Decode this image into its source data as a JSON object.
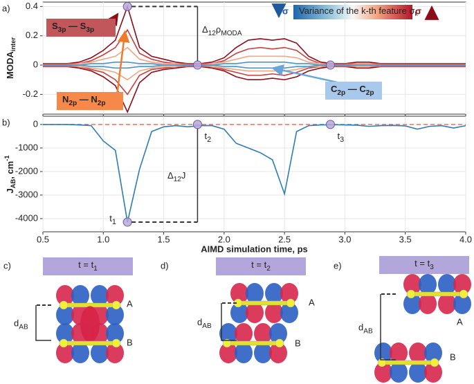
{
  "chart_data": [
    {
      "type": "line",
      "panel": "a)",
      "ylabel": [
        {
          "t": "MODA"
        },
        {
          "t": "inter",
          "sub": true
        }
      ],
      "x": [
        0.5,
        0.6,
        0.7,
        0.8,
        0.9,
        1.0,
        1.1,
        1.2,
        1.3,
        1.4,
        1.5,
        1.6,
        1.7,
        1.8,
        1.9,
        2.0,
        2.1,
        2.2,
        2.3,
        2.4,
        2.5,
        2.6,
        2.7,
        2.8,
        2.9,
        3.0,
        3.1,
        3.2,
        3.3,
        3.4,
        3.5,
        3.6,
        3.7,
        3.8,
        3.9,
        4.0
      ],
      "series": [
        {
          "color": "#8b0d1a",
          "values": [
            0.01,
            0.01,
            0.01,
            0.02,
            0.05,
            0.1,
            0.17,
            0.4,
            0.12,
            0.06,
            0.04,
            0.02,
            0.01,
            0.01,
            0.02,
            0.05,
            0.12,
            0.17,
            0.18,
            0.17,
            0.18,
            0.15,
            0.06,
            0.02,
            0.01,
            0.01,
            0.02,
            0.02,
            0.01,
            0.01,
            0.01,
            0.01,
            0.01,
            0.01,
            0.01,
            0.01
          ]
        },
        {
          "color": "#8b0d1a",
          "values": [
            -0.01,
            -0.01,
            -0.01,
            -0.02,
            -0.04,
            -0.08,
            -0.14,
            -0.32,
            -0.12,
            -0.05,
            -0.03,
            -0.02,
            -0.01,
            -0.01,
            -0.02,
            -0.04,
            -0.08,
            -0.1,
            -0.1,
            -0.09,
            -0.1,
            -0.08,
            -0.04,
            -0.02,
            -0.01,
            -0.01,
            -0.02,
            -0.02,
            -0.01,
            -0.01,
            -0.01,
            -0.01,
            -0.01,
            -0.01,
            -0.01,
            -0.01
          ]
        },
        {
          "color": "#c6403c",
          "values": [
            0.01,
            0.01,
            0.01,
            0.01,
            0.03,
            0.07,
            0.12,
            0.24,
            0.08,
            0.04,
            0.02,
            0.01,
            0.01,
            0.01,
            0.01,
            0.03,
            0.08,
            0.11,
            0.12,
            0.11,
            0.12,
            0.1,
            0.04,
            0.01,
            0.01,
            0.01,
            0.01,
            0.01,
            0.01,
            0.01,
            0.01,
            0.01,
            0.01,
            0.01,
            0.01,
            0.01
          ]
        },
        {
          "color": "#c6403c",
          "values": [
            -0.01,
            -0.01,
            -0.01,
            -0.01,
            -0.03,
            -0.05,
            -0.1,
            -0.2,
            -0.07,
            -0.03,
            -0.02,
            -0.01,
            -0.01,
            -0.01,
            -0.01,
            -0.03,
            -0.05,
            -0.07,
            -0.07,
            -0.06,
            -0.07,
            -0.05,
            -0.02,
            -0.01,
            -0.01,
            -0.01,
            -0.01,
            -0.01,
            -0.01,
            -0.01,
            -0.01,
            -0.01,
            -0.01,
            -0.01,
            -0.01,
            -0.01
          ]
        },
        {
          "color": "#f4a582",
          "values": [
            0,
            0,
            0,
            0.01,
            0.02,
            0.04,
            0.06,
            0.12,
            0.04,
            0.02,
            0.01,
            0.01,
            0,
            0,
            0.01,
            0.02,
            0.04,
            0.06,
            0.06,
            0.06,
            0.06,
            0.05,
            0.02,
            0.01,
            0,
            0,
            0.01,
            0.01,
            0,
            0,
            0,
            0,
            0,
            0,
            0,
            0
          ]
        },
        {
          "color": "#f4a582",
          "values": [
            0,
            0,
            0,
            -0.01,
            -0.02,
            -0.03,
            -0.05,
            -0.1,
            -0.04,
            -0.02,
            -0.01,
            -0.01,
            0,
            0,
            -0.01,
            -0.02,
            -0.03,
            -0.04,
            -0.04,
            -0.04,
            -0.04,
            -0.03,
            -0.01,
            -0.01,
            0,
            0,
            -0.01,
            -0.01,
            0,
            0,
            0,
            0,
            0,
            0,
            0,
            0
          ]
        },
        {
          "color": "#4a93c9",
          "values": [
            0,
            0,
            0,
            0,
            0.01,
            0.01,
            0.02,
            0.02,
            0.01,
            0.01,
            0,
            0,
            0,
            0,
            0,
            0.01,
            0.01,
            0.02,
            0.02,
            0.02,
            0.02,
            0.01,
            0.01,
            0,
            0,
            0,
            0,
            0,
            0,
            0,
            0,
            0,
            0,
            0,
            0,
            0
          ]
        },
        {
          "color": "#4a93c9",
          "values": [
            0,
            0,
            0,
            0,
            -0.01,
            -0.01,
            -0.02,
            -0.02,
            -0.01,
            -0.01,
            0,
            0,
            0,
            0,
            0,
            -0.01,
            -0.01,
            -0.02,
            -0.02,
            -0.02,
            -0.02,
            -0.01,
            -0.01,
            0,
            0,
            0,
            0,
            0,
            0,
            0,
            0,
            0,
            0,
            0,
            0,
            0
          ]
        }
      ],
      "xlim": [
        0.5,
        4.0
      ],
      "ylim": [
        -0.335,
        0.43
      ],
      "yticks": [
        -0.2,
        0,
        0.2,
        0.4
      ],
      "markers": [
        {
          "x": 1.2,
          "y": 0.4
        },
        {
          "x": 1.78,
          "y": 0
        },
        {
          "x": 2.88,
          "y": 0
        }
      ],
      "delta_label": [
        {
          "t": "Δ"
        },
        {
          "t": "12",
          "sub": true
        },
        {
          "t": "ρ"
        },
        {
          "t": "MODA",
          "sub": true
        }
      ],
      "colorbar_label": [
        {
          "t": "Variance of the k-th feature σ"
        },
        {
          "t": "k",
          "sub": true
        }
      ],
      "sigma_low": "σ",
      "sigma_high": "σ",
      "pair_labels": [
        [
          {
            "t": "S"
          },
          {
            "t": "3p",
            "sub": true
          },
          {
            "t": " — S"
          },
          {
            "t": "3p",
            "sub": true
          }
        ],
        [
          {
            "t": "N"
          },
          {
            "t": "2p",
            "sub": true
          },
          {
            "t": " — N"
          },
          {
            "t": "2p",
            "sub": true
          }
        ],
        [
          {
            "t": "C"
          },
          {
            "t": "2p",
            "sub": true
          },
          {
            "t": " — C"
          },
          {
            "t": "2p",
            "sub": true
          }
        ]
      ]
    },
    {
      "type": "line",
      "panel": "b)",
      "ylabel": [
        {
          "t": "J"
        },
        {
          "t": "AB",
          "sub": true
        },
        {
          "t": ", cm"
        },
        {
          "t": "-1",
          "sup": true
        }
      ],
      "xlabel": "AIMD simulation time, ps",
      "x": [
        0.5,
        0.6,
        0.7,
        0.8,
        0.9,
        1.0,
        1.1,
        1.2,
        1.3,
        1.4,
        1.5,
        1.6,
        1.7,
        1.8,
        1.9,
        2.0,
        2.1,
        2.2,
        2.3,
        2.4,
        2.5,
        2.6,
        2.7,
        2.8,
        2.9,
        3.0,
        3.1,
        3.2,
        3.3,
        3.4,
        3.5,
        3.6,
        3.7,
        3.8,
        3.9,
        4.0
      ],
      "series": [
        {
          "color": "#2c7bb6",
          "values": [
            0,
            0,
            0,
            -20,
            -50,
            -700,
            -1100,
            -4150,
            -1900,
            -300,
            -100,
            -50,
            -100,
            -50,
            -50,
            -200,
            -800,
            -1000,
            -1200,
            -1500,
            -2950,
            -300,
            -50,
            -20,
            -10,
            -20,
            -30,
            -80,
            -50,
            -40,
            -60,
            -200,
            -80,
            -50,
            -150,
            -50
          ]
        }
      ],
      "reference_line": {
        "value": 0,
        "color": "#e8715c"
      },
      "xlim": [
        0.5,
        4.0
      ],
      "xticks": [
        0.5,
        {
          "value": 1,
          "label": "1.0"
        },
        1.5,
        {
          "value": 2,
          "label": "2.0"
        },
        2.5,
        {
          "value": 3,
          "label": "3.0"
        },
        3.5,
        {
          "value": 4,
          "label": "4.0"
        }
      ],
      "ylim": [
        -4560,
        350
      ],
      "yticks": [
        -4000,
        -3000,
        -2000,
        -1000,
        0
      ],
      "markers": [
        {
          "x": 1.2,
          "y": -4150,
          "label": [
            {
              "t": "t"
            },
            {
              "t": "1",
              "sub": true
            }
          ]
        },
        {
          "x": 1.78,
          "y": 0,
          "label": [
            {
              "t": "t"
            },
            {
              "t": "2",
              "sub": true
            }
          ]
        },
        {
          "x": 2.88,
          "y": 0,
          "label": [
            {
              "t": "t"
            },
            {
              "t": "3",
              "sub": true
            }
          ]
        }
      ],
      "delta_label": [
        {
          "t": "Δ"
        },
        {
          "t": "12",
          "sub": true
        },
        {
          "t": "J"
        }
      ]
    }
  ],
  "orbital_panels": [
    {
      "letter": "c)",
      "time": [
        {
          "t": "t = t"
        },
        {
          "t": "1",
          "sub": true
        }
      ],
      "top": "A",
      "bottom": "B",
      "distance": [
        {
          "t": "d"
        },
        {
          "t": "AB",
          "sub": true
        }
      ]
    },
    {
      "letter": "d)",
      "time": [
        {
          "t": "t = t"
        },
        {
          "t": "2",
          "sub": true
        }
      ],
      "top": "A",
      "bottom": "B",
      "distance": [
        {
          "t": "d"
        },
        {
          "t": "AB",
          "sub": true
        }
      ]
    },
    {
      "letter": "e)",
      "time": [
        {
          "t": "t = t"
        },
        {
          "t": "3",
          "sub": true
        }
      ],
      "top": "A",
      "bottom": "B",
      "distance": [
        {
          "t": "d"
        },
        {
          "t": "AB",
          "sub": true
        }
      ]
    }
  ]
}
